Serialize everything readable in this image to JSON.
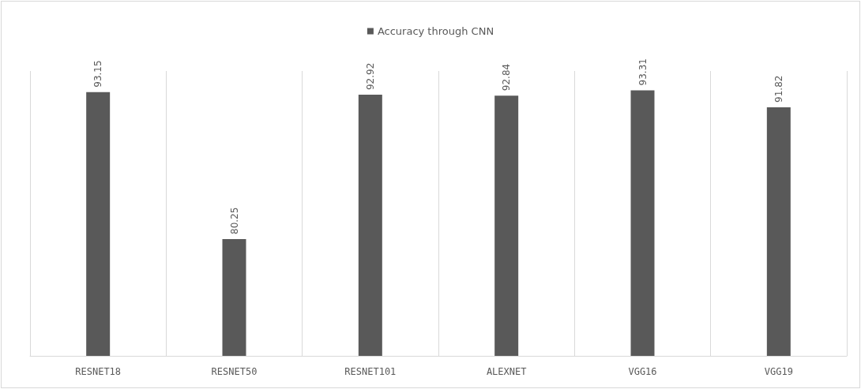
{
  "chart_data": {
    "type": "bar",
    "categories": [
      "RESNET18",
      "RESNET50",
      "RESNET101",
      "ALEXNET",
      "VGG16",
      "VGG19"
    ],
    "series": [
      {
        "name": "Accuracy through CNN",
        "color": "#595959",
        "values": [
          93.15,
          80.25,
          92.92,
          92.84,
          93.31,
          91.82
        ]
      }
    ],
    "ylim": [
      70,
      95
    ],
    "tick_labels": "x",
    "grid": "x",
    "legend": "top",
    "data_labels": true
  }
}
